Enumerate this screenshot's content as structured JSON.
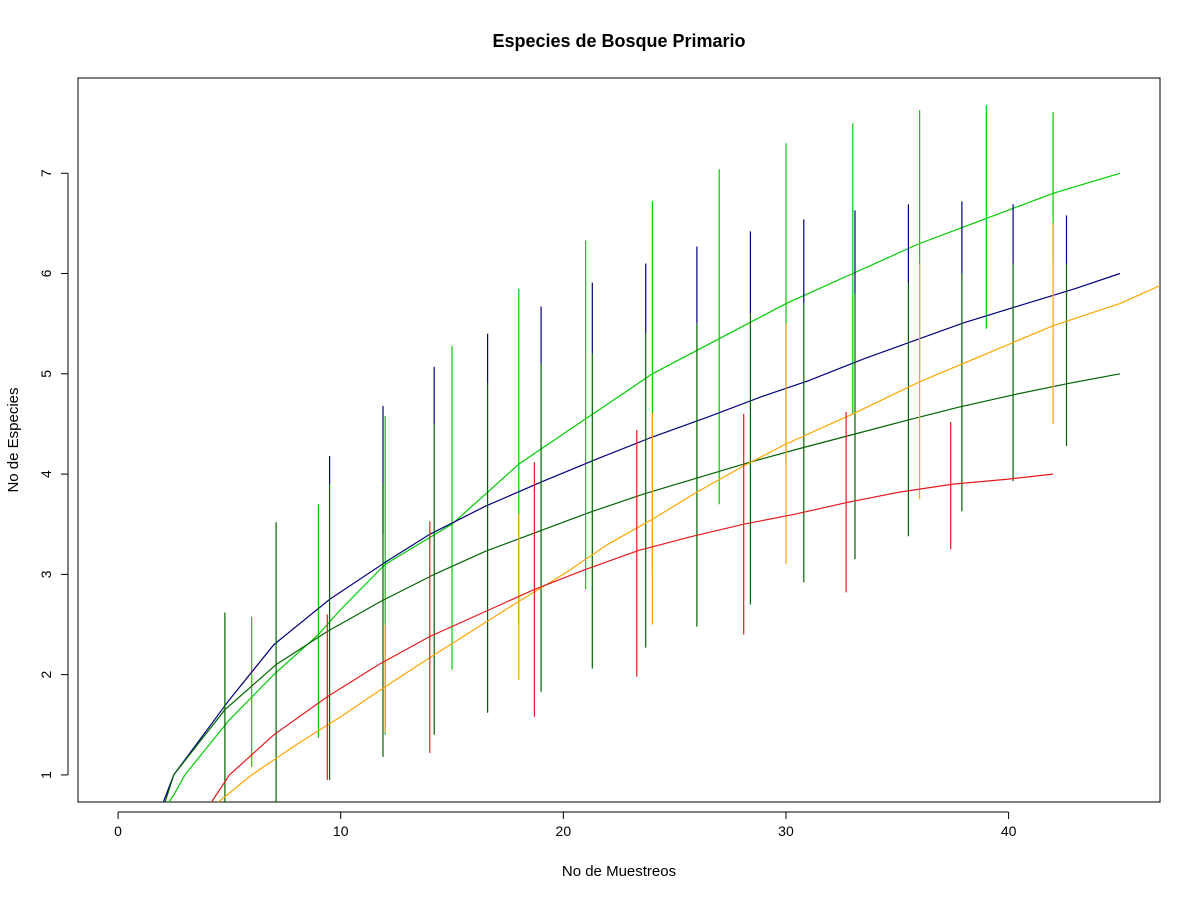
{
  "chart_data": {
    "type": "line",
    "title": "Especies de Bosque Primario",
    "xlabel": "No de Muestreos",
    "ylabel": "No de Especies",
    "xlim": [
      -1.8,
      46.8
    ],
    "ylim": [
      0.73,
      7.95
    ],
    "x_ticks": [
      0,
      10,
      20,
      30,
      40
    ],
    "y_ticks": [
      1,
      2,
      3,
      4,
      5,
      6,
      7
    ],
    "grid": false,
    "series": [
      {
        "color": "#00CC00",
        "line": [
          [
            1,
            0.3
          ],
          [
            2.5,
            0.8
          ],
          [
            3,
            1.0
          ],
          [
            5,
            1.55
          ],
          [
            7,
            2.0
          ],
          [
            9,
            2.4
          ],
          [
            10,
            2.65
          ],
          [
            12,
            3.1
          ],
          [
            15,
            3.5
          ],
          [
            18,
            4.1
          ],
          [
            21,
            4.55
          ],
          [
            24,
            5.0
          ],
          [
            27,
            5.35
          ],
          [
            30,
            5.7
          ],
          [
            33,
            6.0
          ],
          [
            36,
            6.3
          ],
          [
            39,
            6.55
          ],
          [
            42,
            6.8
          ],
          [
            45,
            7.0
          ]
        ],
        "bars": [
          [
            6,
            1.08,
            2.58
          ],
          [
            9,
            1.37,
            3.7
          ],
          [
            12,
            1.4,
            4.58
          ],
          [
            15,
            2.05,
            5.28
          ],
          [
            18,
            2.5,
            5.85
          ],
          [
            21,
            2.85,
            6.33
          ],
          [
            24,
            3.0,
            6.72
          ],
          [
            27,
            3.7,
            7.04
          ],
          [
            30,
            4.1,
            7.3
          ],
          [
            33,
            4.6,
            7.5
          ],
          [
            36,
            5.0,
            7.63
          ],
          [
            39,
            5.45,
            7.68
          ],
          [
            42,
            6.1,
            7.61
          ]
        ]
      },
      {
        "color": "#000080",
        "line": [
          [
            1.3,
            0.3
          ],
          [
            2.5,
            1.0
          ],
          [
            5,
            1.75
          ],
          [
            7,
            2.3
          ],
          [
            9.5,
            2.75
          ],
          [
            12,
            3.12
          ],
          [
            14,
            3.4
          ],
          [
            16.5,
            3.68
          ],
          [
            19,
            3.92
          ],
          [
            21.5,
            4.15
          ],
          [
            24,
            4.37
          ],
          [
            26.5,
            4.57
          ],
          [
            29,
            4.78
          ],
          [
            31,
            4.93
          ],
          [
            33.5,
            5.15
          ],
          [
            36,
            5.35
          ],
          [
            38,
            5.51
          ],
          [
            40.5,
            5.68
          ],
          [
            43,
            5.85
          ],
          [
            45,
            6.0
          ]
        ],
        "bars": [
          [
            9.5,
            3.9,
            4.18
          ],
          [
            11.9,
            3.4,
            4.68
          ],
          [
            14.2,
            4.5,
            5.07
          ],
          [
            16.6,
            4.9,
            5.4
          ],
          [
            19,
            5.1,
            5.67
          ],
          [
            21.3,
            5.2,
            5.91
          ],
          [
            23.7,
            5.4,
            6.1
          ],
          [
            26,
            5.5,
            6.27
          ],
          [
            28.4,
            5.6,
            6.42
          ],
          [
            30.8,
            5.7,
            6.54
          ],
          [
            33.1,
            5.8,
            6.63
          ],
          [
            35.5,
            5.9,
            6.69
          ],
          [
            37.9,
            6.0,
            6.72
          ],
          [
            40.2,
            6.1,
            6.69
          ],
          [
            42.6,
            6.1,
            6.58
          ]
        ]
      },
      {
        "color": "#006400",
        "line": [
          [
            1.5,
            0.3
          ],
          [
            2.5,
            1.0
          ],
          [
            4.8,
            1.65
          ],
          [
            7.1,
            2.1
          ],
          [
            9.4,
            2.43
          ],
          [
            11.8,
            2.73
          ],
          [
            14.2,
            3.0
          ],
          [
            16.5,
            3.23
          ],
          [
            18.9,
            3.43
          ],
          [
            21.2,
            3.62
          ],
          [
            23.6,
            3.8
          ],
          [
            26,
            3.96
          ],
          [
            28.4,
            4.12
          ],
          [
            30.7,
            4.26
          ],
          [
            33.1,
            4.4
          ],
          [
            35.5,
            4.54
          ],
          [
            37.8,
            4.67
          ],
          [
            40.2,
            4.79
          ],
          [
            42.6,
            4.9
          ],
          [
            45,
            5.0
          ]
        ],
        "bars": [
          [
            4.8,
            0.5,
            2.62
          ],
          [
            7.1,
            0.72,
            3.52
          ],
          [
            9.5,
            0.95,
            3.9
          ],
          [
            11.9,
            1.18,
            3.9
          ],
          [
            14.2,
            1.4,
            4.5
          ],
          [
            16.6,
            1.62,
            4.9
          ],
          [
            19,
            1.83,
            5.1
          ],
          [
            21.3,
            2.06,
            5.2
          ],
          [
            23.7,
            2.27,
            5.4
          ],
          [
            26,
            2.48,
            5.5
          ],
          [
            28.4,
            2.7,
            5.6
          ],
          [
            30.8,
            2.92,
            5.7
          ],
          [
            33.1,
            3.15,
            5.8
          ],
          [
            35.5,
            3.38,
            5.9
          ],
          [
            37.9,
            3.63,
            6.0
          ],
          [
            40.2,
            3.93,
            6.1
          ],
          [
            42.6,
            4.28,
            6.1
          ]
        ]
      },
      {
        "color": "#FFA500",
        "line": [
          [
            3,
            0.3
          ],
          [
            4.5,
            0.73
          ],
          [
            6,
            1.0
          ],
          [
            8,
            1.3
          ],
          [
            10,
            1.58
          ],
          [
            12,
            1.88
          ],
          [
            14,
            2.17
          ],
          [
            16,
            2.45
          ],
          [
            18,
            2.73
          ],
          [
            20,
            3.0
          ],
          [
            22,
            3.3
          ],
          [
            24,
            3.55
          ],
          [
            26,
            3.82
          ],
          [
            28,
            4.07
          ],
          [
            30,
            4.3
          ],
          [
            33,
            4.6
          ],
          [
            36,
            4.92
          ],
          [
            39,
            5.2
          ],
          [
            42,
            5.48
          ],
          [
            45,
            5.7
          ],
          [
            47,
            5.9
          ]
        ],
        "bars": [
          [
            12,
            1.42,
            2.5
          ],
          [
            18,
            1.95,
            3.6
          ],
          [
            24,
            2.5,
            4.6
          ],
          [
            30,
            3.1,
            5.5
          ],
          [
            36,
            3.75,
            6.1
          ],
          [
            42,
            4.5,
            6.5
          ]
        ]
      },
      {
        "color": "#E31A1C",
        "line": [
          [
            3,
            0.3
          ],
          [
            4.2,
            0.73
          ],
          [
            5,
            1.0
          ],
          [
            7,
            1.4
          ],
          [
            9.4,
            1.78
          ],
          [
            11.7,
            2.1
          ],
          [
            14,
            2.38
          ],
          [
            16.4,
            2.62
          ],
          [
            18.7,
            2.85
          ],
          [
            21,
            3.05
          ],
          [
            23.4,
            3.24
          ],
          [
            25.8,
            3.38
          ],
          [
            28.1,
            3.5
          ],
          [
            30.4,
            3.6
          ],
          [
            32.8,
            3.72
          ],
          [
            35.1,
            3.82
          ],
          [
            37.5,
            3.9
          ],
          [
            40,
            3.95
          ],
          [
            42,
            4.0
          ]
        ],
        "bars": [
          [
            9.4,
            0.95,
            2.6
          ],
          [
            14,
            1.22,
            3.53
          ],
          [
            18.7,
            1.58,
            4.12
          ],
          [
            23.3,
            1.98,
            4.44
          ],
          [
            28.1,
            2.4,
            4.6
          ],
          [
            32.7,
            2.82,
            4.62
          ],
          [
            37.4,
            3.25,
            4.52
          ]
        ]
      }
    ]
  }
}
